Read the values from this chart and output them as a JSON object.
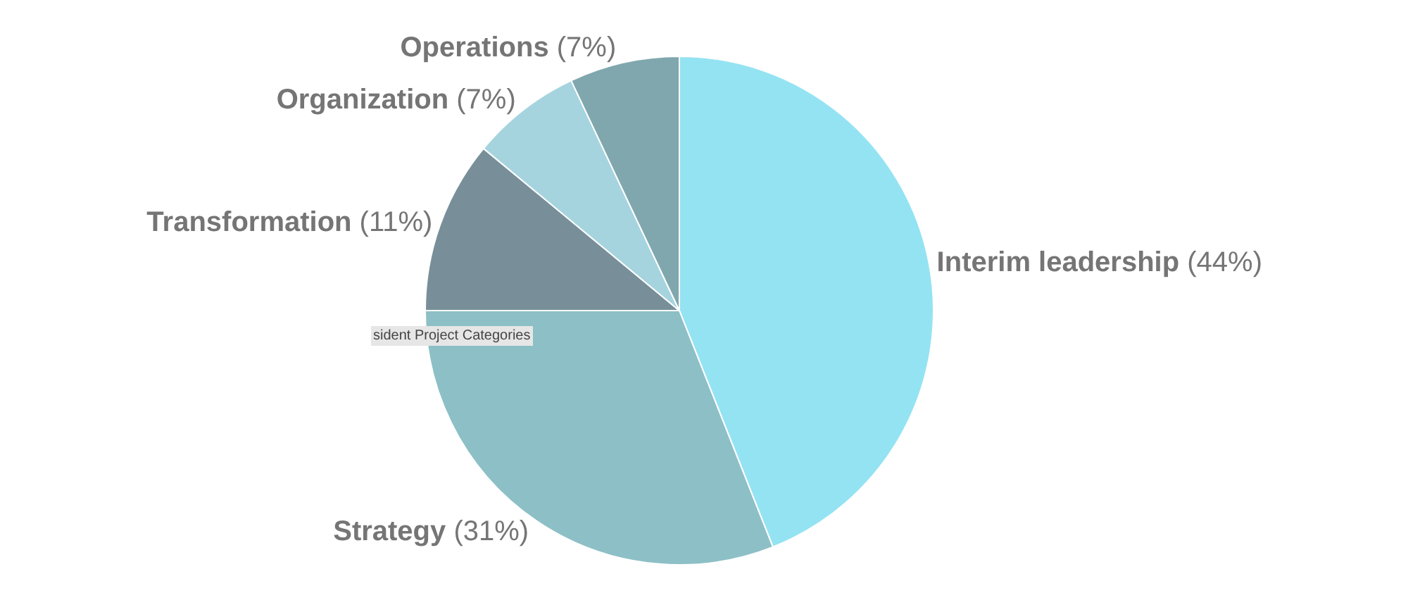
{
  "chart_data": {
    "type": "pie",
    "categories": [
      "Interim leadership",
      "Strategy",
      "Transformation",
      "Organization",
      "Operations"
    ],
    "values": [
      44,
      31,
      11,
      7,
      7
    ],
    "colors": [
      "#94e3f3",
      "#8dbfc6",
      "#788f99",
      "#a5d4df",
      "#80a7ae"
    ],
    "value_labels": [
      "(44%)",
      "(31%)",
      "(11%)",
      "(7%)",
      "(7%)"
    ],
    "annotations": [
      "sident Project Categories"
    ],
    "legend": false
  }
}
